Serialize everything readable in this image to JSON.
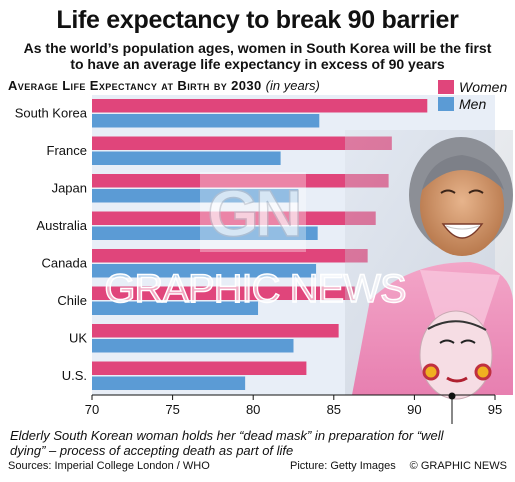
{
  "title": "Life expectancy to break 90 barrier",
  "subtitle": "As the world’s population ages, women in South Korea will be the first to have an average life expectancy in excess of 90 years",
  "chart_heading": "Average Life Expectancy at Birth by 2030",
  "chart_unit": "(in years)",
  "caption": "Elderly South Korean woman holds her “dead mask” in preparation for “well dying” – process of accepting death as part of life",
  "sources": "Sources: Imperial College London / WHO",
  "picture": "Picture: Getty Images",
  "copyright": "© GRAPHIC NEWS",
  "watermark": "GRAPHIC NEWS",
  "logo_letters": "GN",
  "colors": {
    "women": "#e0457b",
    "men": "#5b9bd5",
    "plot_bg": "#e8eef7",
    "grid": "#ffffff"
  },
  "chart_data": {
    "type": "bar",
    "orientation": "horizontal",
    "categories": [
      "South Korea",
      "France",
      "Japan",
      "Australia",
      "Canada",
      "Chile",
      "UK",
      "U.S."
    ],
    "series": [
      {
        "name": "Women",
        "values": [
          90.8,
          88.6,
          88.4,
          87.6,
          87.1,
          86.3,
          85.3,
          83.3
        ]
      },
      {
        "name": "Men",
        "values": [
          84.1,
          81.7,
          82.8,
          84.0,
          83.9,
          80.3,
          82.5,
          79.5
        ]
      }
    ],
    "xlim": [
      70,
      95
    ],
    "xticks": [
      70,
      75,
      80,
      85,
      90,
      95
    ],
    "legend": "top-right",
    "grid": false
  }
}
